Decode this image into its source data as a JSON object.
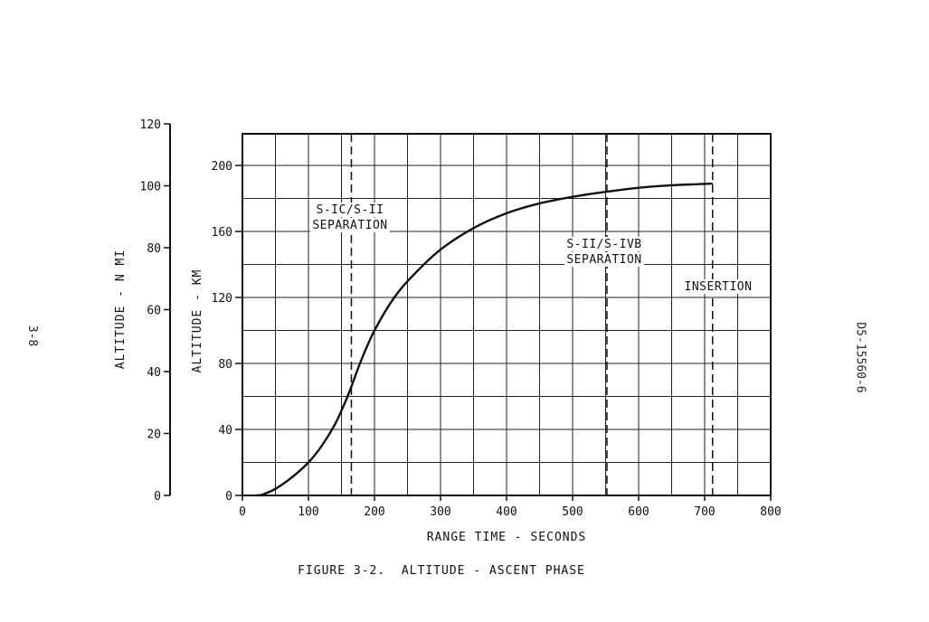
{
  "page": {
    "left_margin_text": "3-8",
    "right_margin_text": "D5-15560-6"
  },
  "chart_data": {
    "type": "line",
    "title": "FIGURE 3-2.  ALTITUDE - ASCENT PHASE",
    "xlabel": "RANGE TIME - SECONDS",
    "ylabel": "ALTITUDE - KM",
    "ylabel_secondary": "ALTITUDE - N MI",
    "xlim": [
      0,
      800
    ],
    "ylim": [
      0,
      200
    ],
    "ylim_secondary": [
      0,
      120
    ],
    "x_ticks": [
      0,
      100,
      200,
      300,
      400,
      500,
      600,
      700,
      800
    ],
    "y_ticks": [
      0,
      40,
      80,
      120,
      160,
      200
    ],
    "y_ticks_secondary": [
      0,
      20,
      40,
      60,
      80,
      100,
      120
    ],
    "grid": true,
    "series": [
      {
        "x": [
          20,
          30,
          50,
          75,
          100,
          120,
          140,
          155,
          165,
          180,
          200,
          230,
          260,
          300,
          350,
          400,
          450,
          500,
          550,
          600,
          650,
          712
        ],
        "y": [
          0,
          0.5,
          4,
          11,
          20,
          30,
          43,
          56,
          66,
          82,
          100,
          120,
          134,
          149,
          162,
          171,
          177,
          181,
          184,
          186.5,
          188,
          189
        ]
      }
    ],
    "events": [
      {
        "x": 165,
        "label_lines": [
          "S-IC/S-II",
          "SEPARATION"
        ]
      },
      {
        "x": 552,
        "label_lines": [
          "S-II/S-IVB",
          "SEPARATION"
        ]
      },
      {
        "x": 712,
        "label_lines": [
          "INSERTION"
        ]
      }
    ]
  }
}
